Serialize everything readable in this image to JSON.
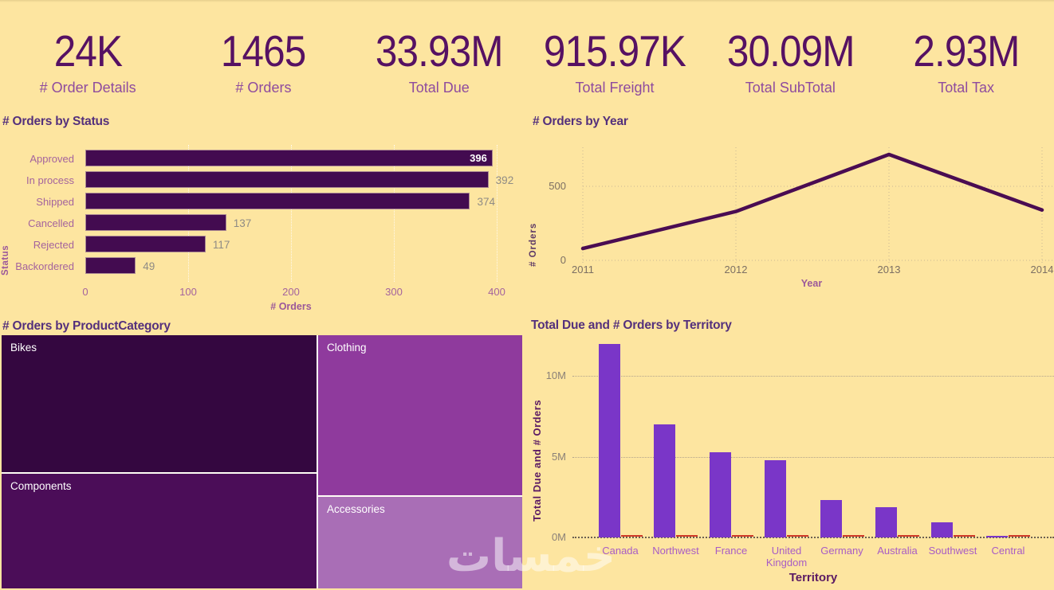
{
  "background_color": "#fde5a0",
  "watermark_text": "خمسات",
  "kpis": [
    {
      "value": "24K",
      "label": "# Order Details"
    },
    {
      "value": "1465",
      "label": "# Orders"
    },
    {
      "value": "33.93M",
      "label": "Total Due"
    },
    {
      "value": "915.97K",
      "label": "Total Freight"
    },
    {
      "value": "30.09M",
      "label": "Total SubTotal"
    },
    {
      "value": "2.93M",
      "label": "Total Tax"
    }
  ],
  "colors": {
    "kpi_value": "#561163",
    "kpi_label": "#8e4b9e",
    "chart_title": "#54307c",
    "status_bar_fill": "#430b50",
    "line_stroke": "#4a0c52",
    "territory_bar_fill": "#7a36c8",
    "orders_series_mark": "#cf3a28",
    "mauve_axis_text": "#a4639d",
    "gray_axis_text": "#8b8178",
    "territory_category_text": "#a85cc5",
    "dark_axis_title": "#5b1a63"
  },
  "chart_data": [
    {
      "type": "bar",
      "orientation": "horizontal",
      "title": "# Orders by Status",
      "xlabel": "# Orders",
      "ylabel": "Status",
      "categories": [
        "Approved",
        "In process",
        "Shipped",
        "Cancelled",
        "Rejected",
        "Backordered"
      ],
      "values": [
        396,
        392,
        374,
        137,
        117,
        49
      ],
      "value_label_inside": [
        true,
        false,
        false,
        false,
        false,
        false
      ],
      "xticks": [
        0,
        100,
        200,
        300,
        400
      ],
      "xlim": [
        0,
        400
      ],
      "grid": "vertical dotted"
    },
    {
      "type": "line",
      "title": "# Orders by Year",
      "xlabel": "Year",
      "ylabel": "# Orders",
      "x": [
        2011,
        2012,
        2013,
        2014
      ],
      "values": [
        80,
        330,
        715,
        340
      ],
      "yticks": [
        0,
        500
      ],
      "ylim": [
        0,
        800
      ],
      "grid": "dotted"
    },
    {
      "type": "treemap",
      "title": "# Orders by ProductCategory",
      "items": [
        {
          "label": "Bikes",
          "color": "#340740"
        },
        {
          "label": "Components",
          "color": "#4b0d58"
        },
        {
          "label": "Clothing",
          "color": "#8f3a9d"
        },
        {
          "label": "Accessories",
          "color": "#a96eb6"
        }
      ]
    },
    {
      "type": "bar",
      "orientation": "vertical",
      "title": "Total Due and # Orders by Territory",
      "xlabel": "Territory",
      "ylabel": "Total Due and # Orders",
      "categories": [
        "Canada",
        "Northwest",
        "France",
        "United Kingdom",
        "Germany",
        "Australia",
        "Southwest",
        "Central"
      ],
      "series": [
        {
          "name": "Total Due",
          "values_millions": [
            11.95,
            7.0,
            5.25,
            4.8,
            2.3,
            1.85,
            0.95,
            0.1
          ]
        },
        {
          "name": "# Orders",
          "values_millions": [
            0,
            0,
            0,
            0,
            0,
            0,
            0,
            0
          ]
        }
      ],
      "yticks": [
        {
          "label": "0M",
          "value": 0
        },
        {
          "label": "5M",
          "value": 5
        },
        {
          "label": "10M",
          "value": 10
        }
      ],
      "ylim_millions": [
        0,
        12.4
      ],
      "grid": "horizontal dotted"
    }
  ]
}
